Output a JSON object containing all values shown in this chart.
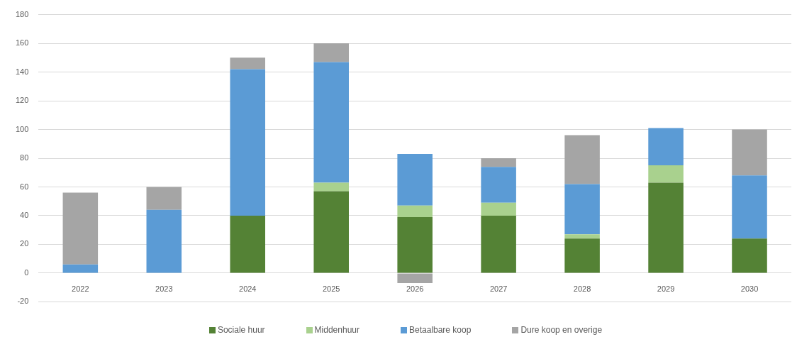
{
  "chart_data": {
    "type": "bar",
    "stacked": true,
    "categories": [
      "2022",
      "2023",
      "2024",
      "2025",
      "2026",
      "2027",
      "2028",
      "2029",
      "2030"
    ],
    "series": [
      {
        "name": "Sociale huur",
        "color": "#548235",
        "values": [
          0,
          0,
          40,
          57,
          39,
          40,
          24,
          63,
          24
        ]
      },
      {
        "name": "Middenhuur",
        "color": "#a9d18e",
        "values": [
          0,
          0,
          0,
          6,
          8,
          9,
          3,
          12,
          0
        ]
      },
      {
        "name": "Betaalbare koop",
        "color": "#5b9bd5",
        "values": [
          6,
          44,
          102,
          84,
          36,
          25,
          35,
          26,
          44
        ]
      },
      {
        "name": "Dure koop en overige",
        "color": "#a5a5a5",
        "values": [
          50,
          16,
          8,
          13,
          -7,
          6,
          34,
          0,
          32
        ]
      }
    ],
    "ylim": [
      -20,
      180
    ],
    "yticks": [
      -20,
      0,
      20,
      40,
      60,
      80,
      100,
      120,
      140,
      160,
      180
    ],
    "grid": "y",
    "legend": "bottom"
  }
}
